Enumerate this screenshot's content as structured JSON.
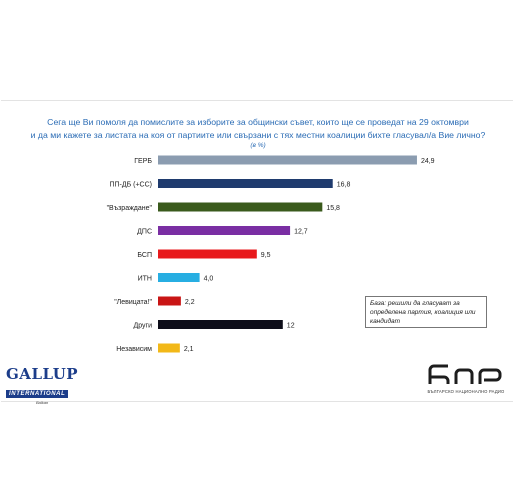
{
  "title_line1": "Сега ще Ви помоля да помислите за изборите за общински съвет, които ще се проведат на 29 октомври",
  "title_line2": "и да ми кажете за листата на коя от партиите или свързани с тях местни коалиции бихте гласувал/а Вие лично?",
  "unit": "(в %)",
  "note": "База: решили да гласуват за определена партия, коалиция или кандидат",
  "logos": {
    "gallup_main": "GALLUP",
    "gallup_bar": "INTERNATIONAL",
    "gallup_sub": "Balkan",
    "bnr_caption": "БЪЛГАРСКО НАЦИОНАЛНО РАДИО"
  },
  "chart_data": {
    "type": "bar",
    "orientation": "horizontal",
    "categories": [
      "ГЕРБ",
      "ПП-ДБ (+СС)",
      "\"Възраждане\"",
      "ДПС",
      "БСП",
      "ИТН",
      "\"Левицата!\"",
      "Други",
      "Независим"
    ],
    "values": [
      24.9,
      16.8,
      15.8,
      12.7,
      9.5,
      4.0,
      2.2,
      12,
      2.1
    ],
    "value_labels": [
      "24,9",
      "16,8",
      "15,8",
      "12,7",
      "9,5",
      "4,0",
      "2,2",
      "12",
      "2,1"
    ],
    "colors": [
      "#8b9cb0",
      "#1f3b6e",
      "#3a5a1c",
      "#7a2ea3",
      "#e8191c",
      "#27aee2",
      "#c91515",
      "#0e0e1a",
      "#f2b818"
    ],
    "xlim": [
      0,
      25
    ],
    "grid": false
  }
}
